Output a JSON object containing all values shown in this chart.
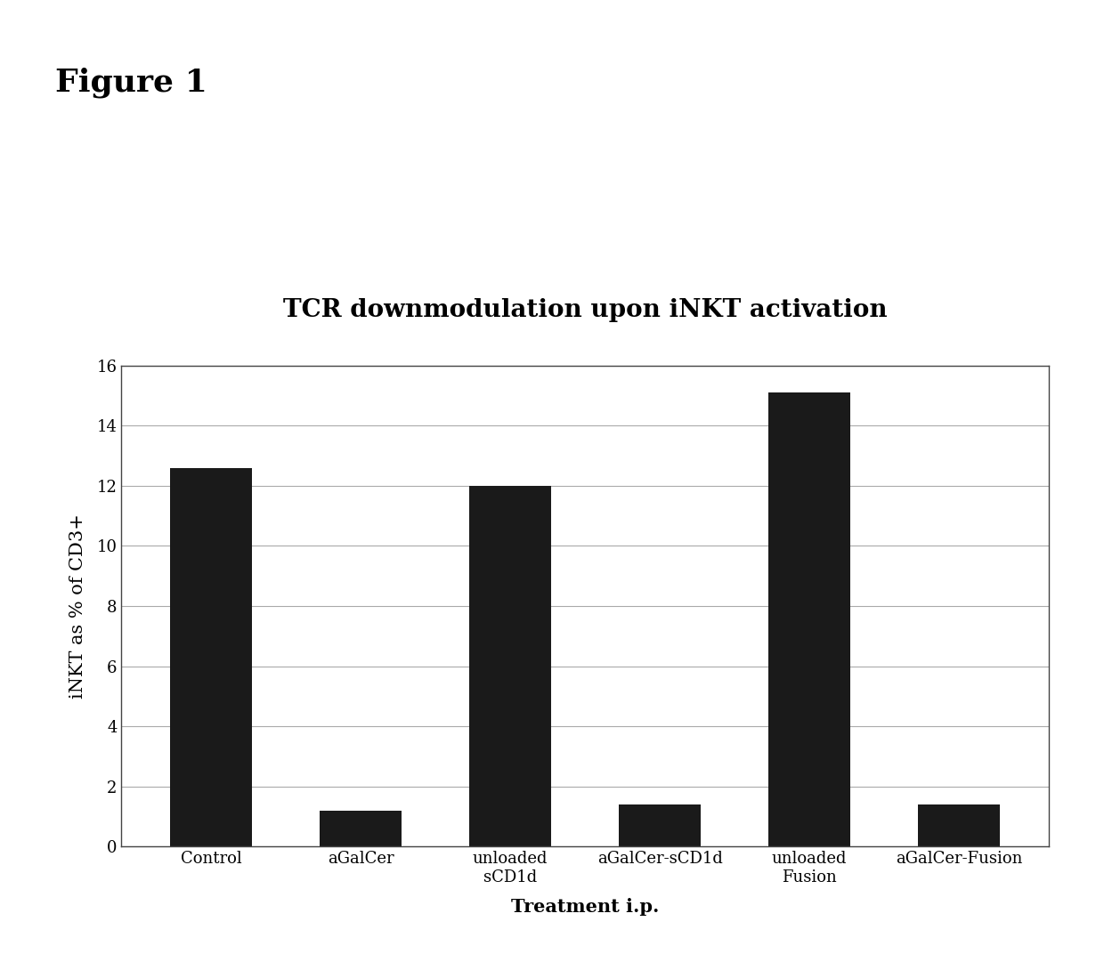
{
  "title": "TCR downmodulation upon iNKT activation",
  "figure_label": "Figure 1",
  "xlabel": "Treatment i.p.",
  "ylabel": "iNKT as % of CD3+",
  "categories": [
    "Control",
    "aGalCer",
    "unloaded\nsCD1d",
    "aGalCer-sCD1d",
    "unloaded\nFusion",
    "aGalCer-Fusion"
  ],
  "values": [
    12.6,
    1.2,
    12.0,
    1.4,
    15.1,
    1.4
  ],
  "bar_color": "#1a1a1a",
  "ylim": [
    0,
    16
  ],
  "yticks": [
    0,
    2,
    4,
    6,
    8,
    10,
    12,
    14,
    16
  ],
  "background_color": "#ffffff",
  "bar_width": 0.55,
  "title_fontsize": 20,
  "axis_label_fontsize": 15,
  "tick_fontsize": 13,
  "figure_label_fontsize": 26
}
